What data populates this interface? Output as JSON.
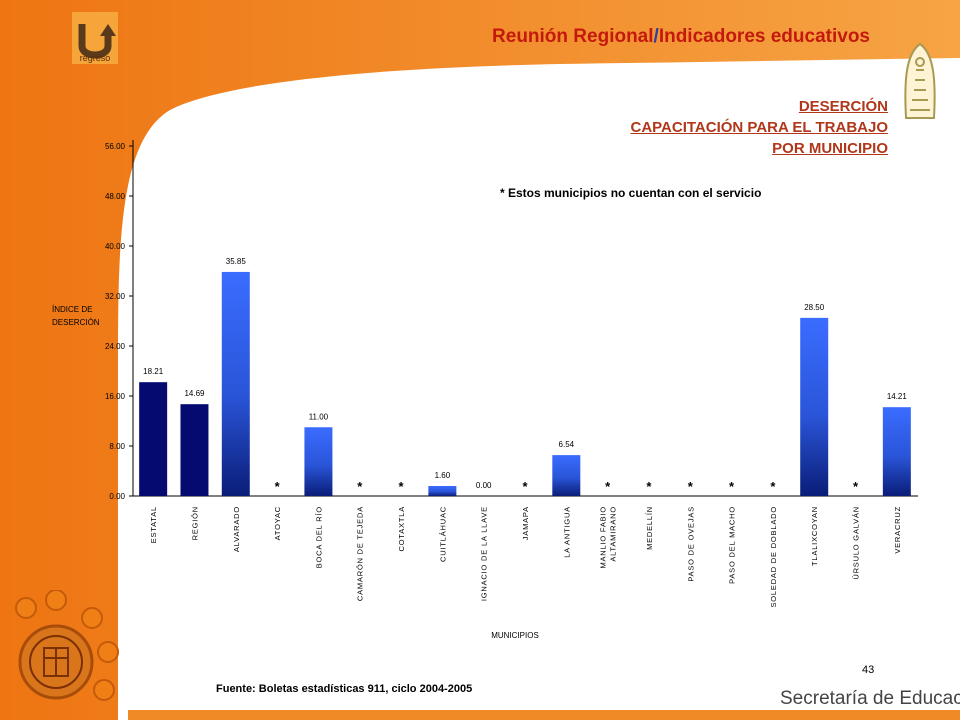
{
  "header": {
    "title_part1": "Reunión Regional",
    "title_sep": "/",
    "title_part2": "Indicadores educativos",
    "logo_label": "regreso"
  },
  "subtitle": {
    "line1": "DESERCIÓN",
    "line2": "CAPACITACIÓN PARA EL TRABAJO",
    "line3": "POR MUNICIPIO"
  },
  "note": "* Estos municipios no cuentan con el servicio",
  "source": "Fuente: Boletas estadísticas 911, ciclo 2004-2005",
  "page_number": "43",
  "footer_brand": "Secretaría de Educación",
  "colors": {
    "accent": "#f07f16",
    "title": "#c41a0e",
    "dark_bar": "#050a70",
    "gradient_top": "#3a6cff",
    "gradient_bottom": "#0a1d78"
  },
  "chart_data": {
    "type": "bar",
    "title": "",
    "xlabel": "MUNICIPIOS",
    "ylabel_line1": "ÍNDICE DE",
    "ylabel_line2": "DESERCIÓN",
    "ylim": [
      0,
      56
    ],
    "yticks": [
      "0.00",
      "8.00",
      "16.00",
      "24.00",
      "32.00",
      "40.00",
      "48.00",
      "56.00"
    ],
    "categories": [
      "ESTATAL",
      "REGIÓN",
      "ALVARADO",
      "ATOYAC",
      "BOCA DEL RÍO",
      "CAMARÓN DE TEJEDA",
      "COTAXTLA",
      "CUITLÁHUAC",
      "IGNACIO DE LA LLAVE",
      "JAMAPA",
      "LA ANTIGUA",
      "MANLIO FABIO ALTAMIRANO",
      "MEDELLÍN",
      "PASO DE OVEJAS",
      "PASO DEL MACHO",
      "SOLEDAD DE DOBLADO",
      "TLALIXCOYAN",
      "ÚRSULO GALVÁN",
      "VERACRUZ"
    ],
    "category_label_lines": [
      [
        "ESTATAL"
      ],
      [
        "REGIÓN"
      ],
      [
        "ALVARADO"
      ],
      [
        "ATOYAC"
      ],
      [
        "BOCA DEL RÍO"
      ],
      [
        "CAMARÓN DE TEJEDA"
      ],
      [
        "COTAXTLA"
      ],
      [
        "CUITLÁHUAC"
      ],
      [
        "IGNACIO DE LA LLAVE"
      ],
      [
        "JAMAPA"
      ],
      [
        "LA ANTIGUA"
      ],
      [
        "MANLIO FABIO",
        "ALTAMIRANO"
      ],
      [
        "MEDELLÍN"
      ],
      [
        "PASO DE OVEJAS"
      ],
      [
        "PASO DEL MACHO"
      ],
      [
        "SOLEDAD DE DOBLADO"
      ],
      [
        "TLALIXCOYAN"
      ],
      [
        "ÚRSULO GALVÁN"
      ],
      [
        "VERACRUZ"
      ]
    ],
    "values": [
      18.21,
      14.69,
      35.85,
      null,
      11.0,
      null,
      null,
      1.6,
      0.0,
      null,
      6.54,
      null,
      null,
      null,
      null,
      null,
      28.5,
      null,
      14.21
    ],
    "data_labels": [
      "18.21",
      "14.69",
      "35.85",
      "*",
      "11.00",
      "*",
      "*",
      "1.60",
      "0.00",
      "*",
      "6.54",
      "*",
      "*",
      "*",
      "*",
      "*",
      "28.50",
      "*",
      "14.21"
    ],
    "bar_style": [
      "solid",
      "solid",
      "gradient",
      "none",
      "gradient",
      "none",
      "none",
      "gradient",
      "gradient",
      "none",
      "gradient",
      "none",
      "none",
      "none",
      "none",
      "none",
      "gradient",
      "none",
      "gradient"
    ],
    "grid": false,
    "legend": "none"
  }
}
